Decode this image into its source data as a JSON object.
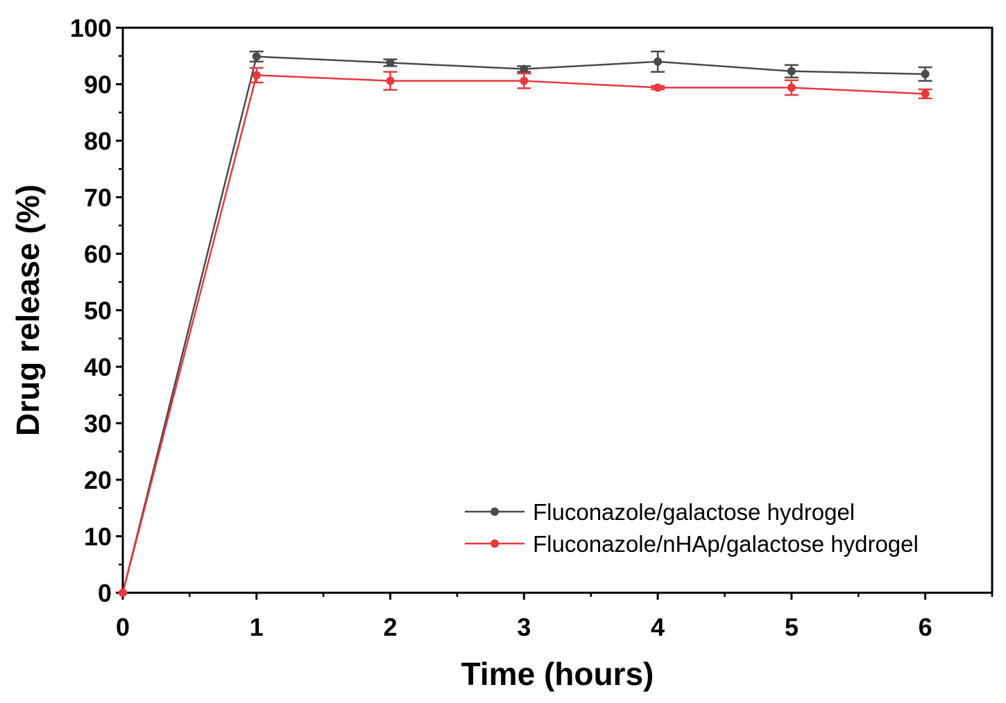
{
  "chart_data": {
    "type": "line",
    "xlabel": "Time (hours)",
    "ylabel": "Drug release (%)",
    "xlim": [
      0,
      6.5
    ],
    "ylim": [
      0,
      100
    ],
    "x_ticks": [
      0,
      1,
      2,
      3,
      4,
      5,
      6
    ],
    "y_ticks": [
      0,
      10,
      20,
      30,
      40,
      50,
      60,
      70,
      80,
      90,
      100
    ],
    "grid": false,
    "legend_position": "bottom-right",
    "series": [
      {
        "name": "Fluconazole/galactose hydrogel",
        "color": "#4a4a4a",
        "x": [
          0,
          1,
          2,
          3,
          4,
          5,
          6
        ],
        "y": [
          0,
          94.9,
          93.8,
          92.7,
          94.0,
          92.3,
          91.8
        ],
        "error": [
          0,
          0.9,
          0.6,
          0.5,
          1.8,
          1.1,
          1.2
        ]
      },
      {
        "name": "Fluconazole/nHAp/galactose hydrogel",
        "color": "#e8383d",
        "x": [
          0,
          1,
          2,
          3,
          4,
          5,
          6
        ],
        "y": [
          0,
          91.6,
          90.6,
          90.6,
          89.4,
          89.4,
          88.3
        ],
        "error": [
          0,
          1.3,
          1.6,
          1.3,
          0.3,
          1.3,
          0.8
        ]
      }
    ]
  }
}
